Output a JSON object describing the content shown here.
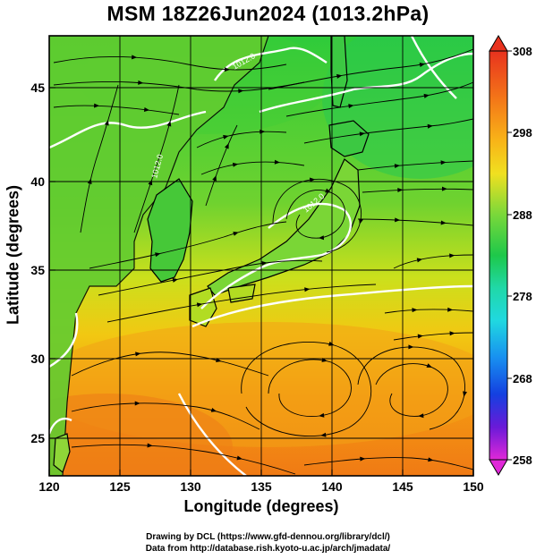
{
  "title": "MSM 18Z26Jun2024 (1013.2hPa)",
  "axes": {
    "xlabel": "Longitude (degrees)",
    "ylabel": "Latitude  (degrees)",
    "x_ticks": [
      "120",
      "125",
      "130",
      "135",
      "140",
      "145",
      "150"
    ],
    "y_ticks": [
      "25",
      "30",
      "35",
      "40",
      "45"
    ],
    "x_range": [
      120,
      150
    ],
    "y_range": [
      22.5,
      47.5
    ]
  },
  "colorbar": {
    "ticks": [
      "308",
      "298",
      "288",
      "278",
      "268",
      "258"
    ],
    "range": [
      258,
      308
    ]
  },
  "contour_labels": [
    "1012.0",
    "1012.0",
    "1012.0"
  ],
  "credits": {
    "line1": "Drawing by DCL (https://www.gfd-dennou.org/library/dcl/)",
    "line2": "Data from http://database.rish.kyoto-u.ac.jp/arch/jmadata/"
  },
  "colors": {
    "warm": "#f08a1a",
    "mid": "#d8d818",
    "cool": "#2ecb3a",
    "contour": "#ffffff"
  }
}
